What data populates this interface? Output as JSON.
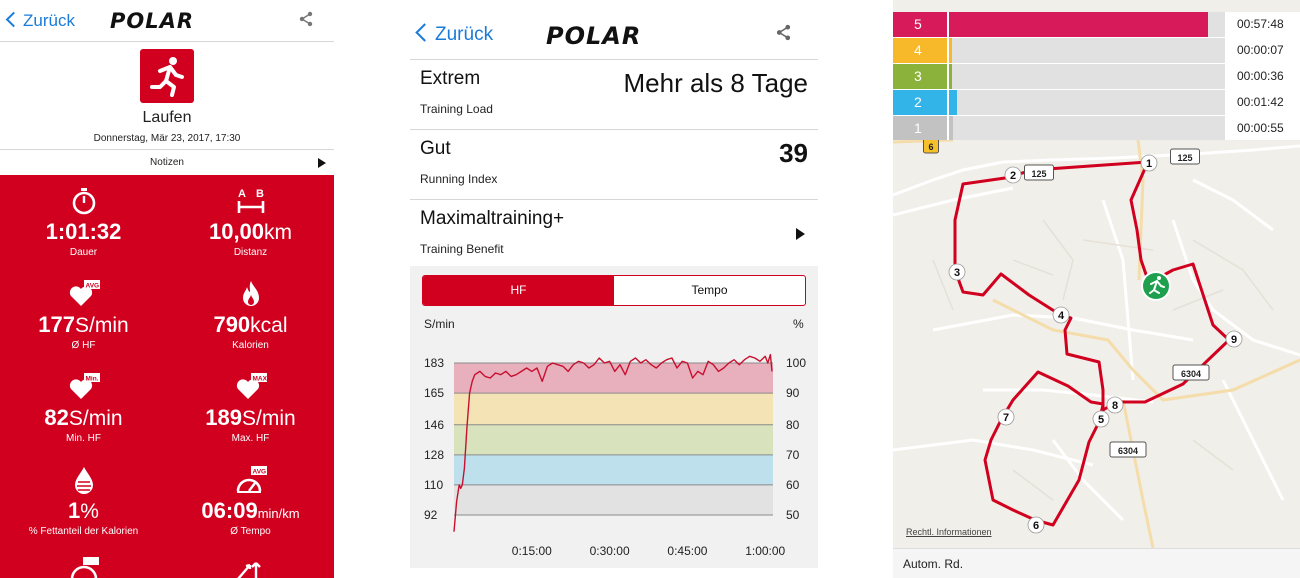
{
  "screen1": {
    "back_label": "Zurück",
    "logo": "POLAR",
    "activity_name": "Laufen",
    "activity_date": "Donnerstag, Mär 23, 2017, 17:30",
    "notes_label": "Notizen",
    "stats": [
      {
        "icon": "stopwatch-icon",
        "value": "1:01:32",
        "unit": "",
        "label": "Dauer"
      },
      {
        "icon": "distance-ab-icon",
        "value": "10,00",
        "unit": "km",
        "label": "Distanz"
      },
      {
        "icon": "heart-avg-icon",
        "badge": "AVG",
        "value": "177",
        "unit": "S/min",
        "label": "Ø HF"
      },
      {
        "icon": "flame-icon",
        "value": "790",
        "unit": "kcal",
        "label": "Kalorien"
      },
      {
        "icon": "heart-min-icon",
        "badge": "Min.",
        "value": "82",
        "unit": "S/min",
        "label": "Min. HF"
      },
      {
        "icon": "heart-max-icon",
        "badge": "MAX",
        "value": "189",
        "unit": "S/min",
        "label": "Max. HF"
      },
      {
        "icon": "fat-drop-icon",
        "value": "1",
        "unit": "%",
        "label": "% Fettanteil der Kalorien"
      },
      {
        "icon": "pace-gauge-icon",
        "badge": "AVG",
        "value": "06:09",
        "unit": "min/km",
        "label": "Ø Tempo"
      }
    ],
    "colors": {
      "accent": "#d1001f",
      "link": "#1a7bd8"
    }
  },
  "screen2": {
    "back_label": "Zurück",
    "logo": "POLAR",
    "rows": [
      {
        "title": "Extrem",
        "subtitle": "Training Load",
        "value": "Mehr als 8 Tage"
      },
      {
        "title": "Gut",
        "subtitle": "Running Index",
        "value": "39"
      },
      {
        "title": "Maximaltraining+",
        "subtitle": "Training Benefit",
        "value": ""
      }
    ],
    "tabs": [
      {
        "label": "HF",
        "active": true
      },
      {
        "label": "Tempo",
        "active": false
      }
    ]
  },
  "chart_data": {
    "type": "line",
    "title": "",
    "left_axis_label": "S/min",
    "right_axis_label": "%",
    "y_ticks_left": [
      92,
      110,
      128,
      146,
      165,
      183
    ],
    "y_ticks_right": [
      50,
      60,
      70,
      80,
      90,
      100
    ],
    "x_ticks": [
      "0:15:00",
      "0:30:00",
      "0:45:00",
      "1:00:00"
    ],
    "ylim": [
      82,
      192
    ],
    "xlim_minutes": [
      0,
      61.5
    ],
    "zones": [
      {
        "from": 165,
        "to": 183,
        "color": "#e8afbd"
      },
      {
        "from": 146,
        "to": 165,
        "color": "#f3e3b5"
      },
      {
        "from": 128,
        "to": 146,
        "color": "#d8e2bd"
      },
      {
        "from": 110,
        "to": 128,
        "color": "#bde0ec"
      },
      {
        "from": 92,
        "to": 110,
        "color": "#e2e2e2"
      }
    ],
    "series": [
      {
        "color": "#c8102e",
        "x": [
          0,
          0.5,
          1,
          1.3,
          1.6,
          2,
          2.5,
          3,
          3.5,
          4,
          5,
          6,
          7,
          8,
          9,
          10,
          11,
          12,
          13,
          14,
          15,
          16,
          17,
          18,
          19,
          20,
          21,
          22,
          23,
          24,
          25,
          26,
          27,
          28,
          29,
          30,
          31,
          32,
          33,
          34,
          35,
          36,
          37,
          38,
          39,
          40,
          41,
          42,
          43,
          44,
          45,
          46,
          47,
          48,
          49,
          50,
          51,
          52,
          53,
          54,
          55,
          56,
          57,
          58,
          59,
          60,
          60.5,
          61,
          61.3
        ],
        "y": [
          82,
          100,
          110,
          108,
          110,
          120,
          145,
          165,
          172,
          176,
          178,
          175,
          174,
          177,
          176,
          178,
          175,
          176,
          178,
          180,
          178,
          180,
          172,
          181,
          183,
          182,
          181,
          178,
          182,
          184,
          183,
          180,
          182,
          186,
          183,
          184,
          178,
          182,
          176,
          184,
          186,
          183,
          185,
          182,
          180,
          183,
          185,
          186,
          180,
          184,
          183,
          174,
          178,
          176,
          184,
          182,
          178,
          180,
          183,
          185,
          182,
          185,
          187,
          186,
          184,
          187,
          183,
          188,
          178
        ]
      }
    ]
  },
  "screen3": {
    "zones": [
      {
        "zone": "5",
        "time": "00:57:48",
        "fraction": 0.94,
        "color": "#d61a5a"
      },
      {
        "zone": "4",
        "time": "00:00:07",
        "fraction": 0.002,
        "color": "#f7b92a"
      },
      {
        "zone": "3",
        "time": "00:00:36",
        "fraction": 0.01,
        "color": "#8bb23a"
      },
      {
        "zone": "2",
        "time": "00:01:42",
        "fraction": 0.028,
        "color": "#33b4e8"
      },
      {
        "zone": "1",
        "time": "00:00:55",
        "fraction": 0.015,
        "color": "#c2c2c2"
      }
    ],
    "road_labels": [
      "6",
      "125",
      "125",
      "6304",
      "6304"
    ],
    "km_markers": [
      "1",
      "2",
      "3",
      "4",
      "5",
      "6",
      "7",
      "8",
      "9"
    ],
    "legal_link": "Rechtl. Informationen",
    "footer_label": "Autom. Rd."
  }
}
